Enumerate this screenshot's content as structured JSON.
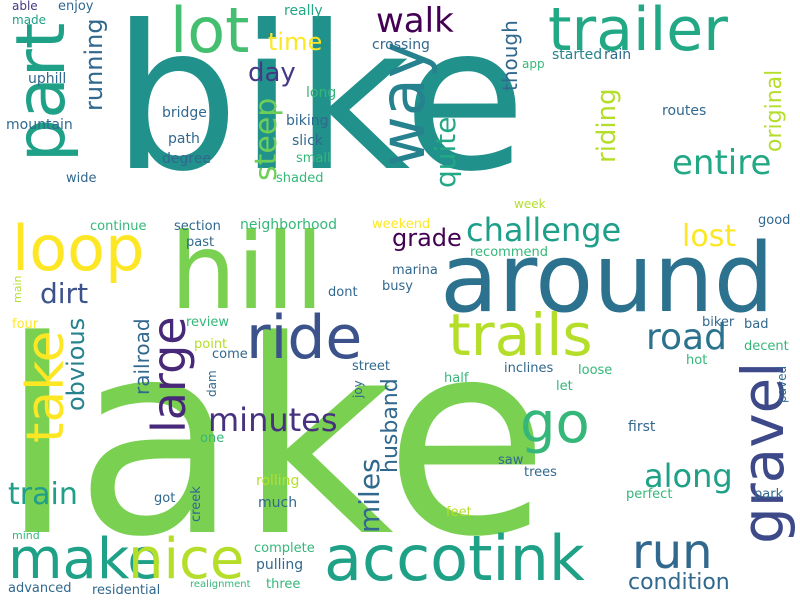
{
  "words": [
    {
      "text": "bike",
      "color": "#21918c"
    },
    {
      "text": "lake",
      "color": "#7ad151"
    },
    {
      "text": "around",
      "color": "#2c728e"
    },
    {
      "text": "hill",
      "color": "#7ad151"
    },
    {
      "text": "part",
      "color": "#1fa187"
    },
    {
      "text": "trailer",
      "color": "#22a884"
    },
    {
      "text": "way",
      "color": "#26828e"
    },
    {
      "text": "loop",
      "color": "#fde725"
    },
    {
      "text": "lot",
      "color": "#44bf70"
    },
    {
      "text": "walk",
      "color": "#440154"
    },
    {
      "text": "time",
      "color": "#fde725"
    },
    {
      "text": "day",
      "color": "#443983"
    },
    {
      "text": "running",
      "color": "#31688e"
    },
    {
      "text": "steep",
      "color": "#6ece58"
    },
    {
      "text": "quite",
      "color": "#22a884"
    },
    {
      "text": "entire",
      "color": "#22a884"
    },
    {
      "text": "riding",
      "color": "#b5de2b"
    },
    {
      "text": "original",
      "color": "#b5de2b"
    },
    {
      "text": "challenge",
      "color": "#1f9e89"
    },
    {
      "text": "lost",
      "color": "#fde725"
    },
    {
      "text": "grade",
      "color": "#440154"
    },
    {
      "text": "take",
      "color": "#fde725"
    },
    {
      "text": "ride",
      "color": "#3b528b"
    },
    {
      "text": "large",
      "color": "#482878"
    },
    {
      "text": "trails",
      "color": "#b5de2b"
    },
    {
      "text": "road",
      "color": "#2c728e"
    },
    {
      "text": "gravel",
      "color": "#3e4989"
    },
    {
      "text": "go",
      "color": "#35b779"
    },
    {
      "text": "along",
      "color": "#1fa187"
    },
    {
      "text": "dirt",
      "color": "#3b528b"
    },
    {
      "text": "obvious",
      "color": "#26828e"
    },
    {
      "text": "minutes",
      "color": "#46327e"
    },
    {
      "text": "railroad",
      "color": "#31688e"
    },
    {
      "text": "miles",
      "color": "#31688e"
    },
    {
      "text": "husband",
      "color": "#31688e"
    },
    {
      "text": "train",
      "color": "#1f9e89"
    },
    {
      "text": "make",
      "color": "#1fa187"
    },
    {
      "text": "nice",
      "color": "#b5de2b"
    },
    {
      "text": "accotink",
      "color": "#1fa187"
    },
    {
      "text": "run",
      "color": "#31688e"
    },
    {
      "text": "condition",
      "color": "#31688e"
    },
    {
      "text": "crossing",
      "color": "#31688e"
    },
    {
      "text": "though",
      "color": "#31688e"
    },
    {
      "text": "app",
      "color": "#35b779"
    },
    {
      "text": "started",
      "color": "#26828e"
    },
    {
      "text": "rain",
      "color": "#31688e"
    },
    {
      "text": "routes",
      "color": "#31688e"
    },
    {
      "text": "able",
      "color": "#443983"
    },
    {
      "text": "made",
      "color": "#1fa187"
    },
    {
      "text": "enjoy",
      "color": "#31688e"
    },
    {
      "text": "really",
      "color": "#22a884"
    },
    {
      "text": "uphill",
      "color": "#31688e"
    },
    {
      "text": "long",
      "color": "#35b779"
    },
    {
      "text": "bridge",
      "color": "#31688e"
    },
    {
      "text": "mountain",
      "color": "#31688e"
    },
    {
      "text": "biking",
      "color": "#31688e"
    },
    {
      "text": "path",
      "color": "#31688e"
    },
    {
      "text": "slick",
      "color": "#31688e"
    },
    {
      "text": "degree",
      "color": "#31688e"
    },
    {
      "text": "small",
      "color": "#35b779"
    },
    {
      "text": "wide",
      "color": "#31688e"
    },
    {
      "text": "shaded",
      "color": "#35b779"
    },
    {
      "text": "week",
      "color": "#b5de2b"
    },
    {
      "text": "good",
      "color": "#31688e"
    },
    {
      "text": "continue",
      "color": "#35b779"
    },
    {
      "text": "section",
      "color": "#31688e"
    },
    {
      "text": "neighborhood",
      "color": "#35b779"
    },
    {
      "text": "weekend",
      "color": "#fde725"
    },
    {
      "text": "past",
      "color": "#31688e"
    },
    {
      "text": "recommend",
      "color": "#35b779"
    },
    {
      "text": "marina",
      "color": "#31688e"
    },
    {
      "text": "main",
      "color": "#b5de2b"
    },
    {
      "text": "dont",
      "color": "#31688e"
    },
    {
      "text": "busy",
      "color": "#31688e"
    },
    {
      "text": "four",
      "color": "#fde725"
    },
    {
      "text": "review",
      "color": "#35b779"
    },
    {
      "text": "biker",
      "color": "#31688e"
    },
    {
      "text": "bad",
      "color": "#31688e"
    },
    {
      "text": "point",
      "color": "#b5de2b"
    },
    {
      "text": "come",
      "color": "#31688e"
    },
    {
      "text": "decent",
      "color": "#35b779"
    },
    {
      "text": "hot",
      "color": "#35b779"
    },
    {
      "text": "dam",
      "color": "#31688e"
    },
    {
      "text": "street",
      "color": "#31688e"
    },
    {
      "text": "joy",
      "color": "#31688e"
    },
    {
      "text": "inclines",
      "color": "#31688e"
    },
    {
      "text": "half",
      "color": "#35b779"
    },
    {
      "text": "loose",
      "color": "#35b779"
    },
    {
      "text": "paved",
      "color": "#31688e"
    },
    {
      "text": "let",
      "color": "#35b779"
    },
    {
      "text": "one",
      "color": "#35b779"
    },
    {
      "text": "first",
      "color": "#31688e"
    },
    {
      "text": "saw",
      "color": "#31688e"
    },
    {
      "text": "trees",
      "color": "#31688e"
    },
    {
      "text": "rolling",
      "color": "#b5de2b"
    },
    {
      "text": "got",
      "color": "#31688e"
    },
    {
      "text": "creek",
      "color": "#31688e"
    },
    {
      "text": "much",
      "color": "#31688e"
    },
    {
      "text": "perfect",
      "color": "#35b779"
    },
    {
      "text": "park",
      "color": "#31688e"
    },
    {
      "text": "feet",
      "color": "#b5de2b"
    },
    {
      "text": "mind",
      "color": "#35b779"
    },
    {
      "text": "complete",
      "color": "#35b779"
    },
    {
      "text": "pulling",
      "color": "#31688e"
    },
    {
      "text": "three",
      "color": "#35b779"
    },
    {
      "text": "realignment",
      "color": "#35b779"
    },
    {
      "text": "advanced",
      "color": "#31688e"
    },
    {
      "text": "residential",
      "color": "#31688e"
    }
  ]
}
